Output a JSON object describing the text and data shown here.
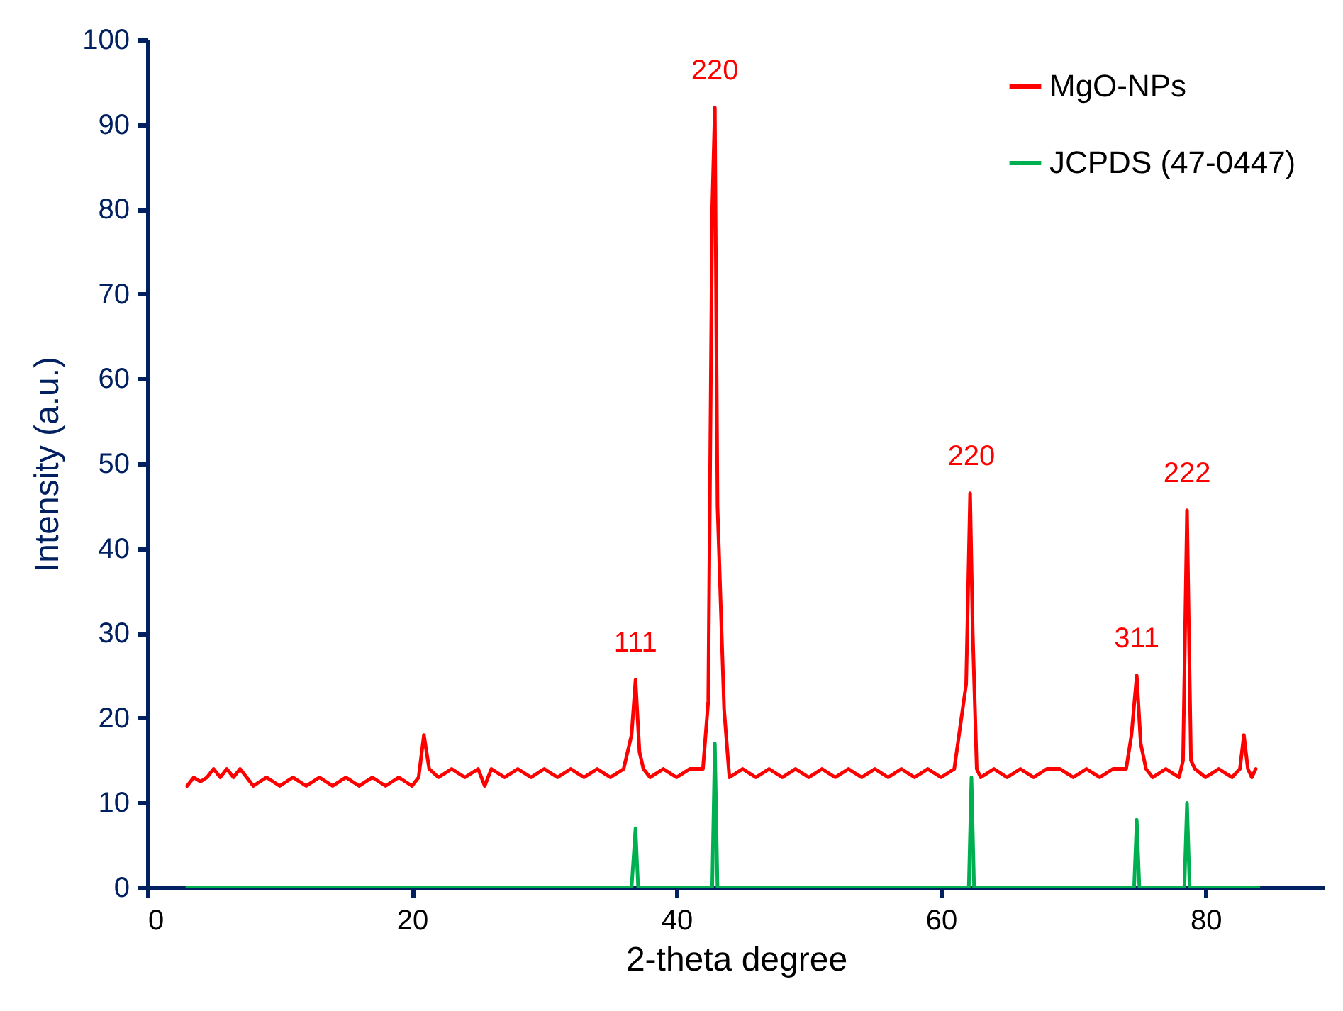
{
  "chart_data": {
    "type": "line",
    "xlabel": "2-theta degree",
    "ylabel": "Intensity (a.u.)",
    "xlim": [
      0,
      89
    ],
    "ylim": [
      0,
      100
    ],
    "xticks": [
      0,
      20,
      40,
      60,
      80
    ],
    "yticks": [
      0,
      10,
      20,
      30,
      40,
      50,
      60,
      70,
      80,
      90,
      100
    ],
    "legend": "top right",
    "series": [
      {
        "name": "MgO-NPs",
        "color": "#ff0000",
        "x": [
          3,
          3.5,
          4,
          4.5,
          5,
          5.5,
          6,
          6.5,
          7,
          7.5,
          8,
          9,
          10,
          11,
          12,
          13,
          14,
          15,
          16,
          17,
          18,
          19,
          20,
          20.5,
          20.9,
          21.3,
          22,
          23,
          24,
          25,
          25.5,
          26,
          27,
          28,
          29,
          30,
          31,
          32,
          33,
          34,
          35,
          36,
          36.6,
          36.9,
          37.2,
          37.5,
          38,
          39,
          40,
          41,
          42,
          42.4,
          42.7,
          42.9,
          43.1,
          43.6,
          44,
          45,
          46,
          47,
          48,
          49,
          50,
          51,
          52,
          53,
          54,
          55,
          56,
          57,
          58,
          59,
          60,
          61,
          61.9,
          62.2,
          62.4,
          62.7,
          63,
          64,
          65,
          66,
          67,
          68,
          69,
          70,
          71,
          72,
          73,
          74,
          74.4,
          74.8,
          75.1,
          75.5,
          76,
          77,
          78,
          78.3,
          78.6,
          78.9,
          79.2,
          80,
          81,
          82,
          82.6,
          82.9,
          83.2,
          83.5,
          83.8
        ],
        "values": [
          12,
          13,
          12.5,
          13,
          14,
          13,
          14,
          13,
          14,
          13,
          12,
          13,
          12,
          13,
          12,
          13,
          12,
          13,
          12,
          13,
          12,
          13,
          12,
          13,
          18,
          14,
          13,
          14,
          13,
          14,
          12,
          14,
          13,
          14,
          13,
          14,
          13,
          14,
          13,
          14,
          13,
          14,
          18,
          24.5,
          16,
          14,
          13,
          14,
          13,
          14,
          14,
          22,
          80,
          92,
          45,
          21,
          13,
          14,
          13,
          14,
          13,
          14,
          13,
          14,
          13,
          14,
          13,
          14,
          13,
          14,
          13,
          14,
          13,
          14,
          24,
          46.5,
          30,
          14,
          13,
          14,
          13,
          14,
          13,
          14,
          14,
          13,
          14,
          13,
          14,
          14,
          18,
          25,
          17,
          14,
          13,
          14,
          13,
          15,
          44.5,
          15,
          14,
          13,
          14,
          13,
          14,
          18,
          14,
          13,
          14
        ]
      },
      {
        "name": "JCPDS (47-0447)",
        "color": "#00b050",
        "x": [
          3,
          36.6,
          36.9,
          37.1,
          42.7,
          42.9,
          43.1,
          62.1,
          62.3,
          62.5,
          74.6,
          74.8,
          75,
          78.4,
          78.6,
          78.8,
          84
        ],
        "values": [
          0,
          0,
          7,
          0,
          0,
          17,
          0,
          0,
          13,
          0,
          0,
          8,
          0,
          0,
          10,
          0,
          0
        ]
      }
    ],
    "annotations": [
      {
        "text": "111",
        "x": 36.9,
        "y": 24.5
      },
      {
        "text": "220",
        "x": 42.9,
        "y": 92
      },
      {
        "text": "220",
        "x": 62.3,
        "y": 46.5
      },
      {
        "text": "311",
        "x": 74.8,
        "y": 25
      },
      {
        "text": "222",
        "x": 78.6,
        "y": 44.5
      }
    ]
  }
}
